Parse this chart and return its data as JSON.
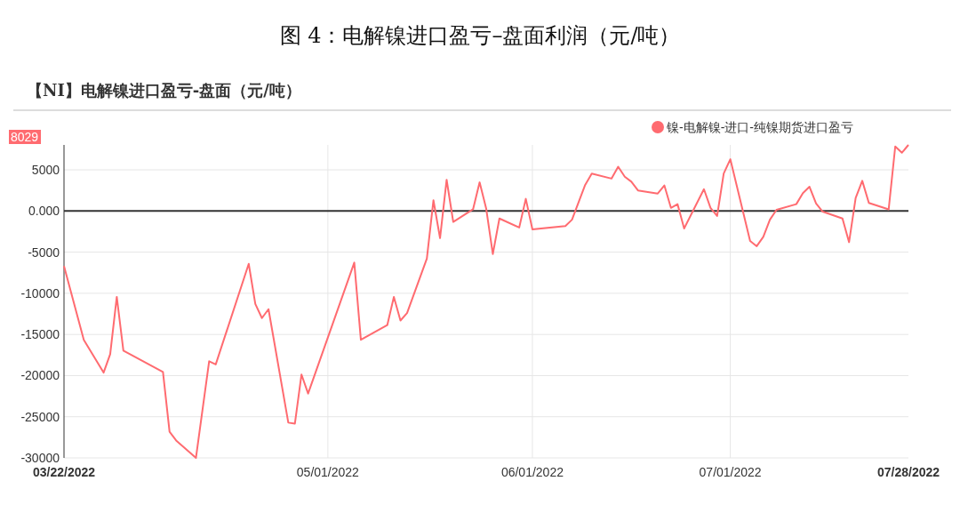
{
  "chart_data": {
    "type": "line",
    "title": "图 4：电解镍进口盈亏–盘面利润（元/吨）",
    "subtitle": "【NI】电解镍进口盈亏-盘面（元/吨）",
    "x": [
      "2022-03-22",
      "2022-03-25",
      "2022-03-28",
      "2022-03-29",
      "2022-03-30",
      "2022-03-31",
      "2022-04-06",
      "2022-04-07",
      "2022-04-08",
      "2022-04-11",
      "2022-04-13",
      "2022-04-14",
      "2022-04-19",
      "2022-04-20",
      "2022-04-21",
      "2022-04-22",
      "2022-04-25",
      "2022-04-26",
      "2022-04-27",
      "2022-04-28",
      "2022-05-05",
      "2022-05-06",
      "2022-05-10",
      "2022-05-11",
      "2022-05-12",
      "2022-05-13",
      "2022-05-16",
      "2022-05-17",
      "2022-05-18",
      "2022-05-19",
      "2022-05-20",
      "2022-05-23",
      "2022-05-24",
      "2022-05-25",
      "2022-05-26",
      "2022-05-27",
      "2022-05-30",
      "2022-05-31",
      "2022-06-01",
      "2022-06-06",
      "2022-06-07",
      "2022-06-09",
      "2022-06-10",
      "2022-06-13",
      "2022-06-14",
      "2022-06-15",
      "2022-06-16",
      "2022-06-17",
      "2022-06-20",
      "2022-06-21",
      "2022-06-22",
      "2022-06-23",
      "2022-06-24",
      "2022-06-27",
      "2022-06-28",
      "2022-06-29",
      "2022-06-30",
      "2022-07-01",
      "2022-07-04",
      "2022-07-05",
      "2022-07-06",
      "2022-07-07",
      "2022-07-08",
      "2022-07-11",
      "2022-07-12",
      "2022-07-13",
      "2022-07-14",
      "2022-07-15",
      "2022-07-18",
      "2022-07-19",
      "2022-07-20",
      "2022-07-21",
      "2022-07-22",
      "2022-07-25",
      "2022-07-26",
      "2022-07-27",
      "2022-07-28"
    ],
    "series": [
      {
        "name": "镍-电解镍-进口-纯镍期货进口盈亏",
        "color": "#ff6b70",
        "values": [
          -6700,
          -15650,
          -19640,
          -17400,
          -10440,
          -16960,
          -19570,
          -26830,
          -27880,
          -30000,
          -18260,
          -18640,
          -6420,
          -11300,
          -13010,
          -11930,
          -25720,
          -25830,
          -19870,
          -22180,
          -6270,
          -15650,
          -13870,
          -10440,
          -13310,
          -12410,
          -5780,
          1300,
          -3300,
          3790,
          -1320,
          200,
          3480,
          270,
          -5230,
          -910,
          -2010,
          1480,
          -2230,
          -1820,
          -1060,
          3180,
          4550,
          3940,
          5380,
          4170,
          3560,
          2500,
          2120,
          3110,
          380,
          830,
          -2120,
          2650,
          380,
          -610,
          4550,
          6290,
          -3640,
          -4280,
          -3140,
          -1060,
          150,
          830,
          2160,
          2950,
          910,
          -80,
          -910,
          -3790,
          1590,
          3670,
          980,
          190,
          7840,
          7080,
          8029
        ]
      }
    ],
    "xlim": [
      "2022-03-22",
      "2022-07-28"
    ],
    "xticks": [
      {
        "value": "2022-03-22",
        "label": "03/22/2022"
      },
      {
        "value": "2022-05-01",
        "label": "05/01/2022"
      },
      {
        "value": "2022-06-01",
        "label": "06/01/2022"
      },
      {
        "value": "2022-07-01",
        "label": "07/01/2022"
      },
      {
        "value": "2022-07-28",
        "label": "07/28/2022"
      }
    ],
    "ylim": [
      -30000,
      8029
    ],
    "yticks": [
      5000,
      {
        "value": 0,
        "label": "0.000"
      },
      -5000,
      -10000,
      -15000,
      -20000,
      -25000,
      -30000
    ],
    "ref_lines": [
      {
        "axis": "y",
        "value": 0,
        "color": "#333333"
      }
    ],
    "annotations": [
      "8029"
    ],
    "grid": true,
    "legend": "top right",
    "marker": "none",
    "line_style": "solid"
  }
}
